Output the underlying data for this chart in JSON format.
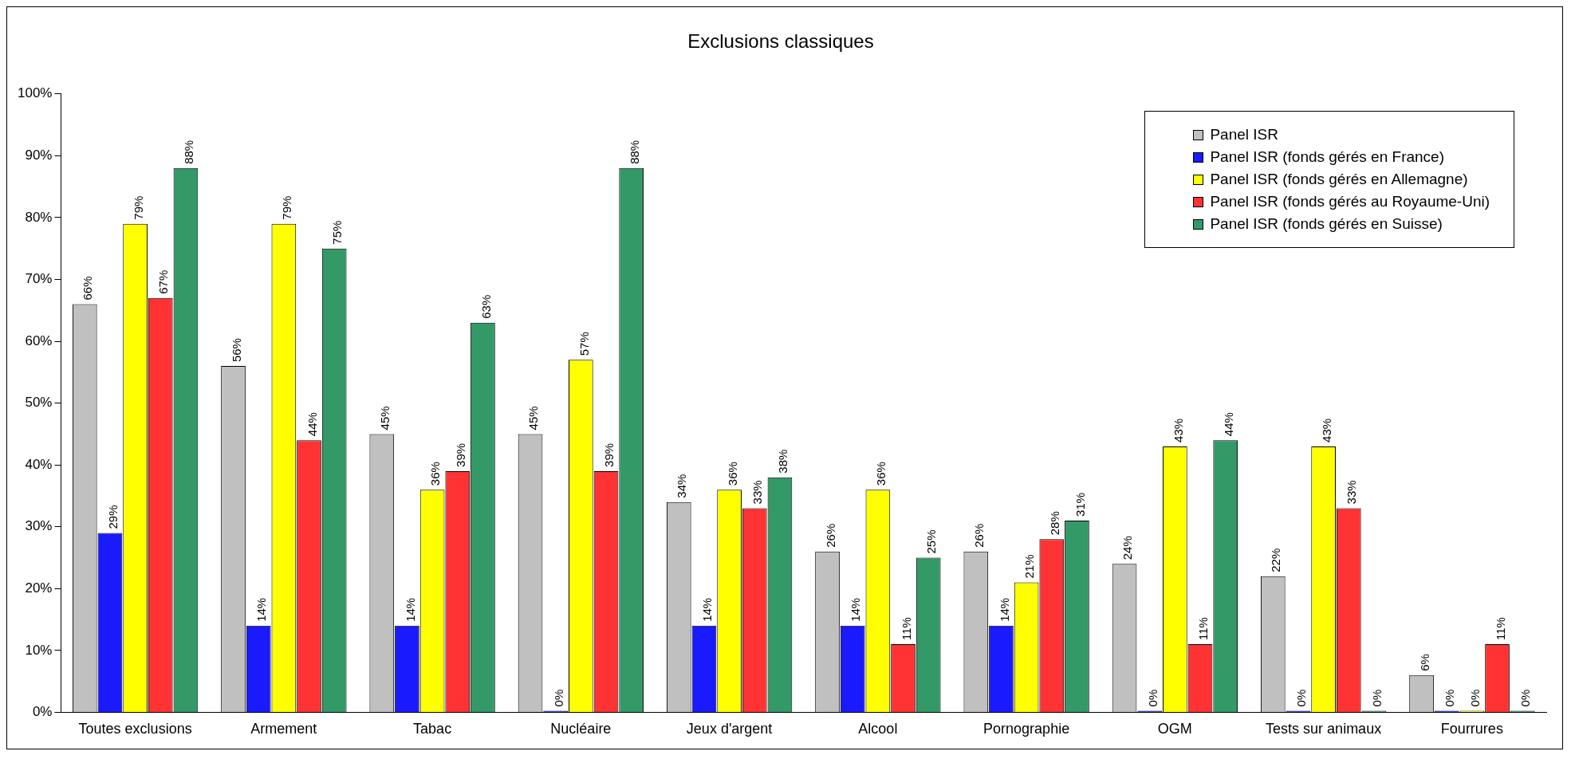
{
  "chart_data": {
    "type": "bar",
    "title": "Exclusions classiques",
    "categories": [
      "Toutes exclusions",
      "Armement",
      "Tabac",
      "Nucléaire",
      "Jeux d'argent",
      "Alcool",
      "Pornographie",
      "OGM",
      "Tests sur animaux",
      "Fourrures"
    ],
    "series": [
      {
        "name": "Panel ISR",
        "color": "#c0c0c0",
        "values": [
          66,
          56,
          45,
          45,
          34,
          26,
          26,
          24,
          22,
          6
        ],
        "value_labels": [
          "66%",
          "56%",
          "45%",
          "45%",
          "34%",
          "26%",
          "26%",
          "24%",
          "22%",
          "6%"
        ]
      },
      {
        "name": "Panel ISR (fonds gérés en France)",
        "color": "#1a1aff",
        "values": [
          29,
          14,
          14,
          0,
          14,
          14,
          14,
          0,
          0,
          0
        ],
        "value_labels": [
          "29%",
          "14%",
          "14%",
          "0%",
          "14%",
          "14%",
          "14%",
          "0%",
          "0%",
          "0%"
        ]
      },
      {
        "name": "Panel ISR (fonds gérés en Allemagne)",
        "color": "#ffff00",
        "values": [
          79,
          79,
          36,
          57,
          36,
          36,
          21,
          43,
          43,
          0
        ],
        "value_labels": [
          "79%",
          "79%",
          "36%",
          "57%",
          "36%",
          "36%",
          "21%",
          "43%",
          "43%",
          "0%"
        ]
      },
      {
        "name": "Panel ISR (fonds gérés au Royaume-Uni)",
        "color": "#ff3333",
        "values": [
          67,
          44,
          39,
          39,
          33,
          11,
          28,
          11,
          33,
          11
        ],
        "value_labels": [
          "67%",
          "44%",
          "39%",
          "39%",
          "33%",
          "11%",
          "28%",
          "11%",
          "33%",
          "11%"
        ]
      },
      {
        "name": "Panel ISR (fonds gérés en Suisse)",
        "color": "#339966",
        "values": [
          88,
          75,
          63,
          88,
          38,
          25,
          31,
          44,
          0,
          0
        ],
        "value_labels": [
          "88%",
          "75%",
          "63%",
          "88%",
          "38%",
          "25%",
          "31%",
          "44%",
          "0%",
          "0%"
        ]
      }
    ],
    "ylim": [
      0,
      100
    ],
    "yticks": [
      {
        "value": 0,
        "label": "0%"
      },
      {
        "value": 10,
        "label": "10%"
      },
      {
        "value": 20,
        "label": "20%"
      },
      {
        "value": 30,
        "label": "30%"
      },
      {
        "value": 40,
        "label": "40%"
      },
      {
        "value": 50,
        "label": "50%"
      },
      {
        "value": 60,
        "label": "60%"
      },
      {
        "value": 70,
        "label": "70%"
      },
      {
        "value": 80,
        "label": "80%"
      },
      {
        "value": 90,
        "label": "90%"
      },
      {
        "value": 100,
        "label": "100%"
      }
    ],
    "grid": false,
    "legend": "top right"
  }
}
